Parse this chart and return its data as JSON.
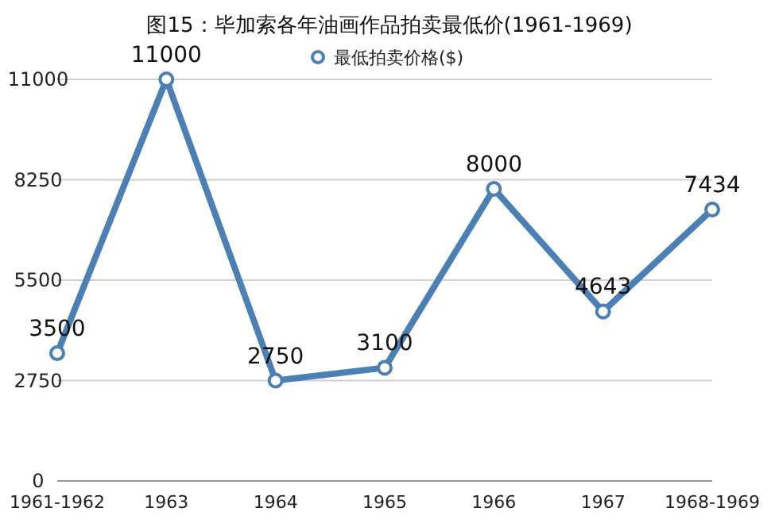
{
  "chart_data": {
    "type": "line",
    "title": "图15：毕加索各年油画作品拍卖最低价(1961-1969)",
    "categories": [
      "1961-1962",
      "1963",
      "1964",
      "1965",
      "1966",
      "1967",
      "1968-1969"
    ],
    "series": [
      {
        "name": "最低拍卖价格($)",
        "color": "#4a80b4",
        "values": [
          3500,
          11000,
          2750,
          3100,
          8000,
          4643,
          7434
        ]
      }
    ],
    "ylim": [
      0,
      11000
    ],
    "yticks": [
      0,
      2750,
      5500,
      8250,
      11000
    ],
    "grid": "y",
    "legend": "top",
    "marker": "circle",
    "data_labels": true
  }
}
